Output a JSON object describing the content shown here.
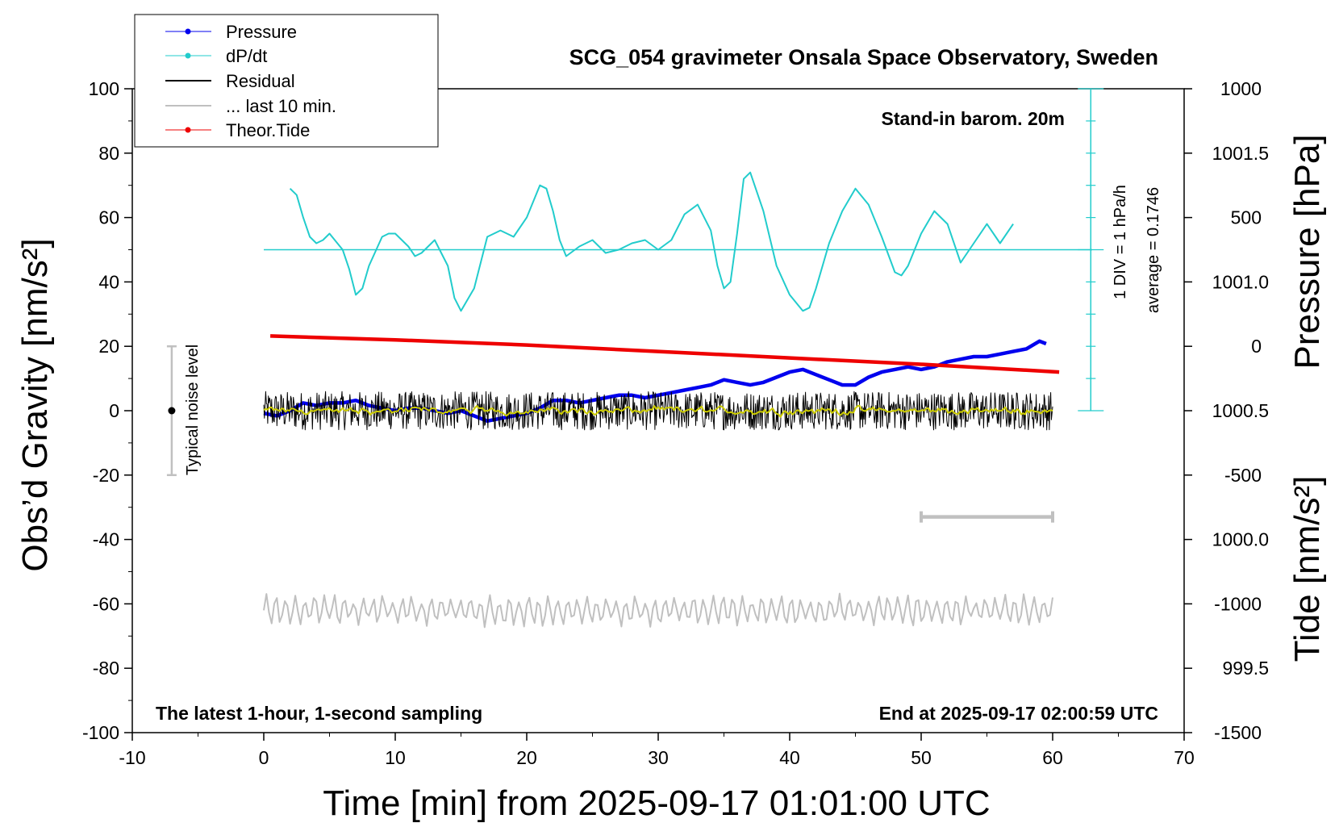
{
  "chart_data": {
    "type": "line",
    "title": "SCG_054 gravimeter Onsala Space Observatory, Sweden",
    "xlabel": "Time [min] from 2025-09-17 01:01:00 UTC",
    "ylabel_left": "Obs’d Gravity [nm/s²]",
    "ylabel_right_top": "Pressure [hPa]",
    "ylabel_right_bottom": "Tide [nm/s²]",
    "xlim": [
      -10,
      70
    ],
    "ylim_left": [
      -100,
      100
    ],
    "ylim_pressure": [
      999.25,
      1001.75
    ],
    "ylim_tide": [
      -1500,
      1000
    ],
    "x_ticks": [
      "-10",
      "0",
      "10",
      "20",
      "30",
      "40",
      "50",
      "60",
      "70"
    ],
    "y_ticks_left": [
      "-100",
      "-80",
      "-60",
      "-40",
      "-20",
      "0",
      "20",
      "40",
      "60",
      "80",
      "100"
    ],
    "y_ticks_pressure": [
      "999.5",
      "1000.0",
      "1000.5",
      "1001.0",
      "1001.5"
    ],
    "y_ticks_tide": [
      "-1500",
      "-1000",
      "-500",
      "0",
      "500",
      "1000"
    ],
    "legend_position": "top-left",
    "legend": [
      {
        "label": "Pressure",
        "color": "#0000ee",
        "marker": true
      },
      {
        "label": "dP/dt",
        "color": "#22cccc",
        "marker": true
      },
      {
        "label": "Residual",
        "color": "#000000",
        "marker": false
      },
      {
        "label": "... last 10 min.",
        "color": "#c0c0c0",
        "marker": false
      },
      {
        "label": "Theor.Tide",
        "color": "#ee0000",
        "marker": true
      }
    ],
    "annotations": {
      "standin": "Stand-in barom. 20m",
      "scale_div": "1 DIV = 1 hPa/h",
      "scale_avg": "average = 0.1746",
      "noise": "Typical noise level",
      "latest": "The latest 1-hour, 1-second sampling",
      "end": "End at 2025-09-17 02:00:59 UTC"
    },
    "series": [
      {
        "name": "Pressure",
        "axis": "pressure",
        "x": [
          0,
          1,
          2,
          3,
          4,
          5,
          6,
          7,
          8,
          9,
          10,
          11,
          12,
          13,
          14,
          15,
          16,
          17,
          18,
          19,
          20,
          21,
          22,
          23,
          24,
          25,
          26,
          27,
          28,
          29,
          30,
          31,
          32,
          33,
          34,
          35,
          36,
          37,
          38,
          39,
          40,
          41,
          42,
          43,
          44,
          45,
          46,
          47,
          48,
          49,
          50,
          51,
          52,
          53,
          54,
          55,
          56,
          57,
          58,
          59,
          59.5
        ],
        "y": [
          1000.49,
          1000.48,
          1000.5,
          1000.53,
          1000.52,
          1000.53,
          1000.53,
          1000.54,
          1000.52,
          1000.51,
          1000.5,
          1000.51,
          1000.51,
          1000.5,
          1000.49,
          1000.5,
          1000.48,
          1000.46,
          1000.47,
          1000.48,
          1000.49,
          1000.51,
          1000.54,
          1000.54,
          1000.53,
          1000.54,
          1000.55,
          1000.56,
          1000.56,
          1000.55,
          1000.56,
          1000.57,
          1000.58,
          1000.59,
          1000.6,
          1000.62,
          1000.61,
          1000.6,
          1000.61,
          1000.63,
          1000.65,
          1000.66,
          1000.64,
          1000.62,
          1000.6,
          1000.6,
          1000.63,
          1000.65,
          1000.66,
          1000.67,
          1000.66,
          1000.67,
          1000.69,
          1000.7,
          1000.71,
          1000.71,
          1000.72,
          1000.73,
          1000.74,
          1000.77,
          1000.76
        ],
        "color": "#0000ee"
      },
      {
        "name": "dP/dt",
        "axis": "left",
        "x": [
          2,
          2.5,
          3,
          3.5,
          4,
          4.5,
          5,
          6,
          6.5,
          7,
          7.5,
          8,
          9,
          9.5,
          10,
          11,
          11.5,
          12,
          13,
          14,
          14.5,
          15,
          16,
          17,
          18,
          18.5,
          19,
          20,
          21,
          21.5,
          22,
          22.5,
          23,
          24,
          25,
          26,
          27,
          28,
          29,
          30,
          31,
          32,
          33,
          34,
          34.5,
          35,
          35.5,
          36,
          36.5,
          37,
          38,
          39,
          40,
          41,
          41.5,
          42,
          43,
          44,
          45,
          46,
          47,
          48,
          48.5,
          49,
          50,
          51,
          52,
          53,
          54,
          55,
          56,
          57
        ],
        "y": [
          69,
          67,
          60,
          54,
          52,
          53,
          55,
          50,
          44,
          36,
          38,
          45,
          54,
          55,
          55,
          51,
          48,
          49,
          53,
          45,
          35,
          31,
          38,
          54,
          56,
          55,
          54,
          60,
          70,
          69,
          62,
          53,
          48,
          51,
          53,
          49,
          50,
          52,
          53,
          50,
          53,
          61,
          64,
          56,
          45,
          38,
          40,
          55,
          72,
          74,
          62,
          45,
          36,
          31,
          32,
          38,
          52,
          62,
          69,
          64,
          54,
          43,
          42,
          45,
          55,
          62,
          58,
          46,
          52,
          58,
          52,
          58
        ],
        "color": "#22cccc"
      },
      {
        "name": "Theor.Tide",
        "axis": "tide",
        "x": [
          0.5,
          10,
          20,
          30,
          40,
          50,
          60.5
        ],
        "y": [
          40,
          25,
          5,
          -20,
          -45,
          -70,
          -100
        ],
        "color": "#ee0000"
      },
      {
        "name": "Residual",
        "axis": "left",
        "x_range": [
          0,
          60
        ],
        "amplitude": 6,
        "mean": 0,
        "color": "#000000"
      },
      {
        "name": "... last 10 min.",
        "axis": "left",
        "x_range": [
          0,
          60
        ],
        "mean": -62,
        "amplitude": 4.5,
        "color": "#c0c0c0"
      }
    ],
    "dpdt_baseline": 50,
    "dpdt_scale_range": [
      0,
      100
    ],
    "noise_bar": {
      "x": -7,
      "center": 0,
      "half_range": 20
    },
    "scale_bar_x": [
      50,
      60
    ],
    "scale_bar_y": -33
  }
}
